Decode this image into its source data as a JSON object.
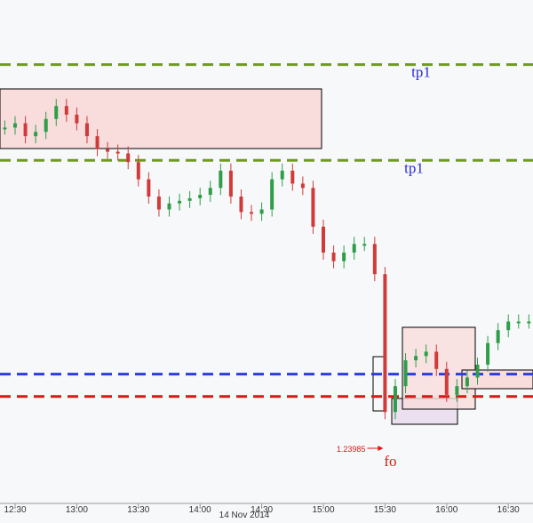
{
  "chart_data": {
    "type": "candlestick",
    "x": [
      "12:25",
      "12:30",
      "12:35",
      "12:40",
      "12:45",
      "12:50",
      "12:55",
      "13:00",
      "13:05",
      "13:10",
      "13:15",
      "13:20",
      "13:25",
      "13:30",
      "13:35",
      "13:40",
      "13:45",
      "13:50",
      "13:55",
      "14:00",
      "14:05",
      "14:10",
      "14:15",
      "14:20",
      "14:25",
      "14:30",
      "14:35",
      "14:40",
      "14:45",
      "14:50",
      "14:55",
      "15:00",
      "15:05",
      "15:10",
      "15:15",
      "15:20",
      "15:25",
      "15:30",
      "15:35",
      "15:40",
      "15:45",
      "15:50",
      "15:55",
      "16:00",
      "16:05",
      "16:10",
      "16:15",
      "16:20",
      "16:25",
      "16:30",
      "16:35",
      "16:40"
    ],
    "values": [
      1.24729,
      1.24739,
      1.24709,
      1.24719,
      1.24749,
      1.24779,
      1.24759,
      1.24739,
      1.24709,
      1.24679,
      1.24673,
      1.24669,
      1.24649,
      1.24609,
      1.24569,
      1.24539,
      1.24553,
      1.24559,
      1.24565,
      1.24573,
      1.24589,
      1.24629,
      1.24569,
      1.24533,
      1.24529,
      1.24539,
      1.24609,
      1.24629,
      1.24599,
      1.24589,
      1.24499,
      1.24439,
      1.24419,
      1.24439,
      1.24459,
      1.24459,
      1.24389,
      1.24069,
      1.24129,
      1.24189,
      1.24199,
      1.24209,
      1.24169,
      1.24109,
      1.24129,
      1.24149,
      1.24179,
      1.24229,
      1.24259,
      1.24279,
      1.24279,
      1.24279
    ],
    "up_color": "#2e9e4a",
    "down_color": "#d03a3a",
    "ylim": [
      1.23859,
      1.25025
    ],
    "xticks": [
      "12:30",
      "13:00",
      "13:30",
      "14:00",
      "14:30",
      "15:00",
      "15:30",
      "16:00",
      "16:30"
    ],
    "xlabel": "14 Nov 2014",
    "levels": [
      {
        "label": "tp1",
        "value": 1.24875,
        "color": "#6f9a1e"
      },
      {
        "label": "tp1",
        "value": 1.24653,
        "color": "#6f9a1e"
      },
      {
        "value": 1.24157,
        "color": "#2a3ee0"
      },
      {
        "value": 1.24105,
        "color": "#e01414"
      }
    ],
    "low": 1.23985,
    "annotation": "fo"
  }
}
